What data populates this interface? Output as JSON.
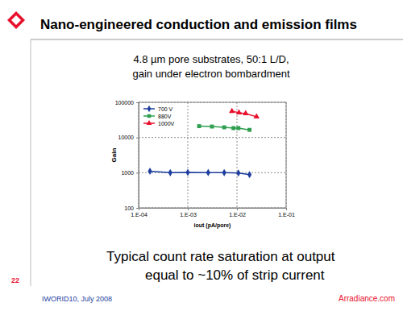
{
  "chart_data": {
    "type": "line",
    "title": "4.8 µm pore substrates, 50:1 L/D,",
    "subtitle": "gain under electron bombardment",
    "xlabel": "iout (pA/pore)",
    "ylabel": "Gain",
    "log": true,
    "grid": true,
    "legend": "upper left",
    "xlim": [
      0.0001,
      0.1
    ],
    "xticks": [
      {
        "value": 0.0001,
        "label": "1.E-04"
      },
      {
        "value": 0.001,
        "label": "1.E-03"
      },
      {
        "value": 0.01,
        "label": "1.E-02"
      },
      {
        "value": 0.1,
        "label": "1.E-01"
      }
    ],
    "ylim": [
      100,
      100000
    ],
    "yticks": [
      100,
      1000,
      10000,
      100000
    ],
    "series": [
      {
        "name": "700 V",
        "color": "#1f3f9f",
        "marker": "diamond",
        "x": [
          0.00017,
          0.00044,
          0.001,
          0.0026,
          0.0055,
          0.0107,
          0.018
        ],
        "values": [
          1100,
          1000,
          1020,
          1010,
          1000,
          980,
          880
        ]
      },
      {
        "name": "880V",
        "color": "#2e9e4f",
        "marker": "square",
        "x": [
          0.0017,
          0.0031,
          0.0055,
          0.0085,
          0.0107,
          0.018
        ],
        "values": [
          21000,
          20500,
          19500,
          18500,
          18500,
          16500
        ]
      },
      {
        "name": "1000V",
        "color": "#e8112d",
        "marker": "triangle",
        "x": [
          0.0079,
          0.011,
          0.015,
          0.025
        ],
        "values": [
          56000,
          50700,
          48000,
          39000
        ]
      }
    ]
  },
  "slide": {
    "heading": "Nano-engineered conduction and emission films",
    "caption": [
      "Typical count rate saturation at output",
      "equal to ~10% of strip current"
    ],
    "page": "22",
    "footer_left": "IWORID10, July 2008",
    "footer_right": "Arradiance.com"
  }
}
